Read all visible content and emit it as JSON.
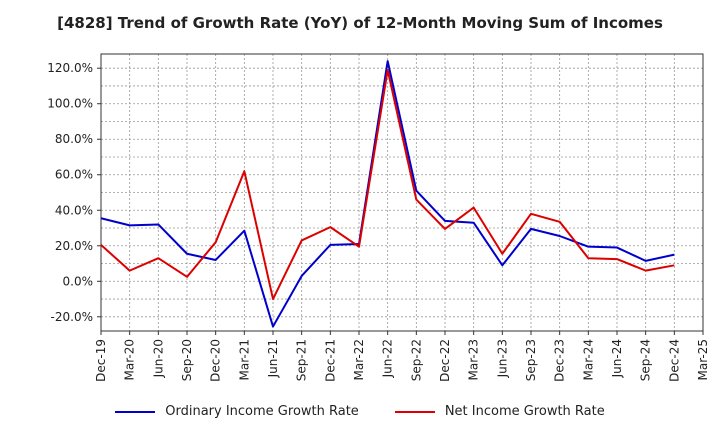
{
  "chart_data": {
    "type": "line",
    "title": "[4828]  Trend of Growth Rate (YoY) of 12-Month Moving Sum of Incomes",
    "xlabel": "",
    "ylabel": "",
    "x": [
      "Dec-19",
      "Mar-20",
      "Jun-20",
      "Sep-20",
      "Dec-20",
      "Mar-21",
      "Jun-21",
      "Sep-21",
      "Dec-21",
      "Mar-22",
      "Jun-22",
      "Sep-22",
      "Dec-22",
      "Mar-23",
      "Jun-23",
      "Sep-23",
      "Dec-23",
      "Mar-24",
      "Jun-24",
      "Sep-24",
      "Dec-24",
      "Mar-25"
    ],
    "ylim": [
      -28,
      128
    ],
    "yticks": [
      -20,
      0,
      20,
      40,
      60,
      80,
      100,
      120
    ],
    "ytick_labels": [
      "-20.0%",
      "0.0%",
      "20.0%",
      "40.0%",
      "60.0%",
      "80.0%",
      "100.0%",
      "120.0%"
    ],
    "grid": true,
    "legend_position": "bottom",
    "series": [
      {
        "name": "Ordinary Income Growth Rate",
        "color": "#0000cc",
        "values": [
          35.5,
          31.5,
          32.0,
          15.5,
          12.0,
          28.5,
          -25.5,
          3.0,
          20.5,
          21.0,
          124.0,
          51.0,
          34.0,
          33.0,
          9.0,
          29.5,
          25.5,
          19.5,
          19.0,
          11.5,
          15.0,
          null
        ]
      },
      {
        "name": "Net Income Growth Rate",
        "color": "#dd0000",
        "values": [
          20.5,
          6.0,
          13.0,
          2.5,
          22.0,
          62.0,
          -10.0,
          23.0,
          30.5,
          19.5,
          119.0,
          46.0,
          29.5,
          41.5,
          15.5,
          38.0,
          33.5,
          13.0,
          12.5,
          6.0,
          9.0,
          null
        ]
      }
    ]
  }
}
